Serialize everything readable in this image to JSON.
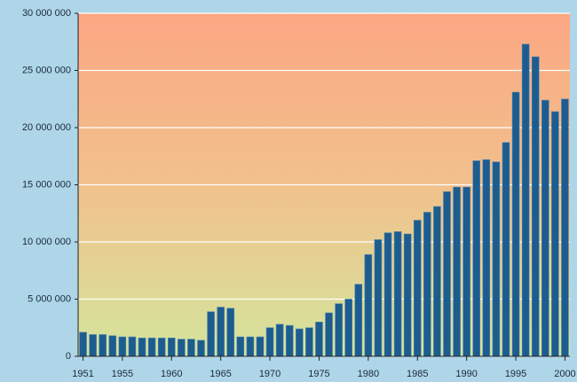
{
  "chart_data": {
    "type": "bar",
    "categories": [
      "1951",
      null,
      null,
      null,
      "1955",
      null,
      null,
      null,
      null,
      "1960",
      null,
      null,
      null,
      null,
      "1965",
      null,
      null,
      null,
      null,
      "1970",
      null,
      null,
      null,
      null,
      "1975",
      null,
      null,
      null,
      null,
      "1980",
      null,
      null,
      null,
      null,
      "1985",
      null,
      null,
      null,
      null,
      "1990",
      null,
      null,
      null,
      null,
      "1995",
      null,
      null,
      null,
      null,
      "2000"
    ],
    "values": [
      2100000,
      1900000,
      1900000,
      1800000,
      1700000,
      1700000,
      1600000,
      1600000,
      1600000,
      1600000,
      1500000,
      1500000,
      1400000,
      3900000,
      4300000,
      4200000,
      1700000,
      1700000,
      1700000,
      2500000,
      2800000,
      2700000,
      2400000,
      2500000,
      3000000,
      3800000,
      4600000,
      5000000,
      6300000,
      8900000,
      10200000,
      10800000,
      10900000,
      10700000,
      11900000,
      12600000,
      13100000,
      14400000,
      14800000,
      14800000,
      17100000,
      17200000,
      17000000,
      18700000,
      23100000,
      27300000,
      26200000,
      22400000,
      21400000,
      22500000
    ],
    "color": "#1d5c8e",
    "ylim": [
      0,
      30000000
    ],
    "yticks": [
      0,
      {
        "value": 5000000,
        "label": "5 000 000"
      },
      {
        "value": 10000000,
        "label": "10 000 000"
      },
      {
        "value": 15000000,
        "label": "15 000 000"
      },
      {
        "value": 20000000,
        "label": "20 000 000"
      },
      {
        "value": 25000000,
        "label": "25 000 000"
      },
      {
        "value": 30000000,
        "label": "30 000 000"
      }
    ],
    "grid": true
  }
}
